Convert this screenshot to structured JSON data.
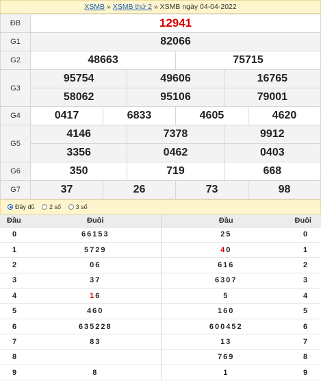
{
  "breadcrumb": {
    "link1": "XSMB",
    "sep1": " » ",
    "link2": "XSMB thứ 2",
    "sep2": " » ",
    "current": "XSMB ngày 04-04-2022"
  },
  "prizes": {
    "db": {
      "label": "ĐB",
      "values": [
        "12941"
      ]
    },
    "g1": {
      "label": "G1",
      "values": [
        "82066"
      ]
    },
    "g2": {
      "label": "G2",
      "values": [
        "48663",
        "75715"
      ]
    },
    "g3": {
      "label": "G3",
      "values": [
        "95754",
        "49606",
        "16765",
        "58062",
        "95106",
        "79001"
      ]
    },
    "g4": {
      "label": "G4",
      "values": [
        "0417",
        "6833",
        "4605",
        "4620"
      ]
    },
    "g5": {
      "label": "G5",
      "values": [
        "4146",
        "7378",
        "9912",
        "3356",
        "0462",
        "0403"
      ]
    },
    "g6": {
      "label": "G6",
      "values": [
        "350",
        "719",
        "668"
      ]
    },
    "g7": {
      "label": "G7",
      "values": [
        "37",
        "26",
        "73",
        "98"
      ]
    }
  },
  "options": [
    "Đầy đủ",
    "2 số",
    "3 số"
  ],
  "loto": {
    "headers": [
      "Đầu",
      "Đuôi",
      "Đầu",
      "Đuôi"
    ],
    "rows": [
      {
        "head": "0",
        "tails": "66153",
        "heads": "25",
        "tail": "0"
      },
      {
        "head": "1",
        "tails": "5729",
        "heads": "40",
        "tail": "1"
      },
      {
        "head": "2",
        "tails": "06",
        "heads": "616",
        "tail": "2"
      },
      {
        "head": "3",
        "tails": "37",
        "heads": "6307",
        "tail": "3"
      },
      {
        "head": "4",
        "tails": "16",
        "heads": "5",
        "tail": "4"
      },
      {
        "head": "5",
        "tails": "460",
        "heads": "160",
        "tail": "5"
      },
      {
        "head": "6",
        "tails": "635228",
        "heads": "600452",
        "tail": "6"
      },
      {
        "head": "7",
        "tails": "83",
        "heads": "13",
        "tail": "7"
      },
      {
        "head": "8",
        "tails": "",
        "heads": "769",
        "tail": "8"
      },
      {
        "head": "9",
        "tails": "8",
        "heads": "1",
        "tail": "9"
      }
    ]
  },
  "colors": {
    "accent_red": "#d40000",
    "link_blue": "#1a5bb8",
    "yellow_bar": "#fff5cc"
  }
}
